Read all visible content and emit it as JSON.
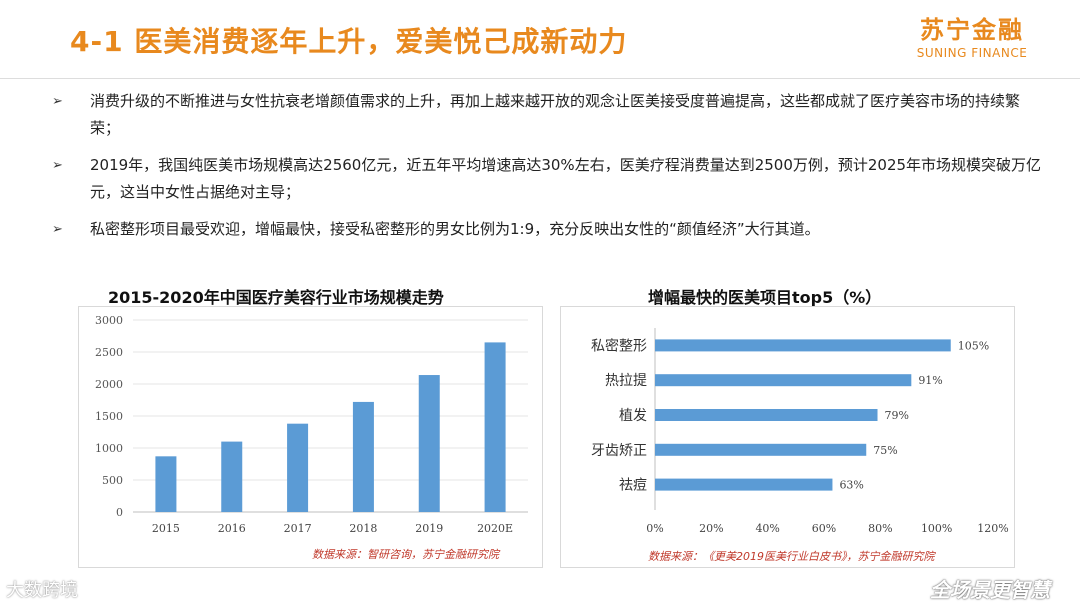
{
  "header": {
    "title": "4-1 医美消费逐年上升，爱美悦己成新动力",
    "logo_cn": "苏宁金融",
    "logo_en": "SUNING FINANCE"
  },
  "bullets": [
    "消费升级的不断推进与女性抗衰老增颜值需求的上升，再加上越来越开放的观念让医美接受度普遍提高，这些都成就了医疗美容市场的持续繁荣；",
    "2019年，我国纯医美市场规模高达2560亿元，近五年平均增速高达30%左右，医美疗程消费量达到2500万例，预计2025年市场规模突破万亿元，这当中女性占据绝对主导；",
    "私密整形项目最受欢迎，增幅最快，接受私密整形的男女比例为1:9，充分反映出女性的“颜值经济”大行其道。"
  ],
  "bullet_symbol": "➢",
  "chart_data": [
    {
      "type": "bar",
      "title": "2015-2020年中国医疗美容行业市场规模走势",
      "categories": [
        "2015",
        "2016",
        "2017",
        "2018",
        "2019",
        "2020E"
      ],
      "values": [
        870,
        1100,
        1380,
        1720,
        2140,
        2650
      ],
      "ylim": [
        0,
        3000
      ],
      "yticks": [
        0,
        500,
        1000,
        1500,
        2000,
        2500,
        3000
      ],
      "xlabel": "",
      "ylabel": "",
      "grid": true,
      "color": "#5b9bd5",
      "source": "数据来源：智研咨询，苏宁金融研究院"
    },
    {
      "type": "bar",
      "orientation": "horizontal",
      "title": "增幅最快的医美项目top5（%）",
      "categories": [
        "私密整形",
        "热拉提",
        "植发",
        "牙齿矫正",
        "祛痘"
      ],
      "values": [
        105,
        91,
        79,
        75,
        63
      ],
      "value_labels": [
        "105%",
        "91%",
        "79%",
        "75%",
        "63%"
      ],
      "xlim": [
        0,
        120
      ],
      "xticks": [
        "0%",
        "20%",
        "40%",
        "60%",
        "80%",
        "100%",
        "120%"
      ],
      "grid": false,
      "color": "#5b9bd5",
      "source": "数据来源：《更美2019医美行业白皮书》，苏宁金融研究院"
    }
  ],
  "watermarks": {
    "left": "大数跨境",
    "right": "全场景更智慧"
  }
}
